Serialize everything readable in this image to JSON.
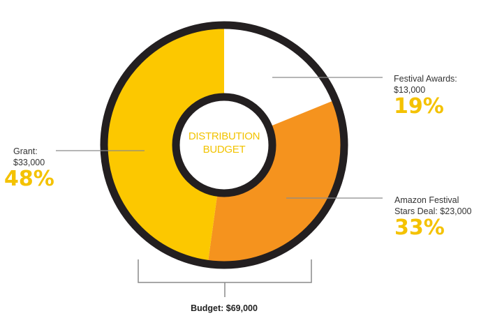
{
  "colors": {
    "grant": "#fcc800",
    "amazon": "#f5931e",
    "awards": "#ffffff",
    "ring": "#231f20",
    "percent": "#f4c200",
    "center_text": "#f2c300"
  },
  "chart_data": {
    "type": "pie",
    "style": "donut",
    "center_label": [
      "DISTRIBUTION",
      "BUDGET"
    ],
    "total_label": "Budget: $69,000",
    "slices": [
      {
        "name": "Festival Awards:",
        "amount": "$13,000",
        "value": 13000,
        "percent_label": "19%",
        "percent": 19,
        "color": "#ffffff"
      },
      {
        "name": "Amazon Festival Stars Deal: $23,000",
        "amount": "",
        "value": 23000,
        "percent_label": "33%",
        "percent": 33,
        "color": "#f5931e"
      },
      {
        "name": "Grant:",
        "amount": "$33,000",
        "value": 33000,
        "percent_label": "48%",
        "percent": 48,
        "color": "#fcc800"
      }
    ]
  },
  "labels": {
    "awards": {
      "line1": "Festival Awards:",
      "line2": "$13,000",
      "pct": "19%"
    },
    "amazon": {
      "line1": "Amazon Festival",
      "line2": "Stars Deal: $23,000",
      "pct": "33%"
    },
    "grant": {
      "line1": "Grant:",
      "line2": "$33,000",
      "pct": "48%"
    }
  }
}
